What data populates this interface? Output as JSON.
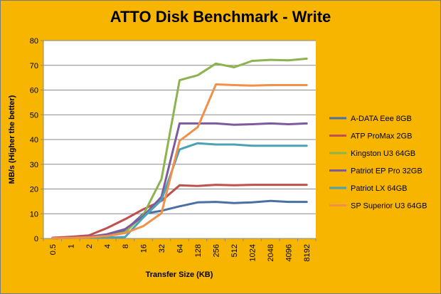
{
  "chart_data": {
    "type": "line",
    "title": "ATTO Disk Benchmark - Write",
    "xlabel": "Transfer Size (KB)",
    "ylabel": "MB/s (Higher the better)",
    "ylim": [
      0,
      80
    ],
    "yticks": [
      0,
      10,
      20,
      30,
      40,
      50,
      60,
      70,
      80
    ],
    "categories": [
      "0.5",
      "1",
      "2",
      "4",
      "8",
      "16",
      "32",
      "64",
      "128",
      "256",
      "512",
      "1024",
      "2048",
      "4096",
      "8192"
    ],
    "grid": "horizontal",
    "legend_position": "right",
    "series": [
      {
        "name": "A-DATA Eee 8GB",
        "color": "#4a6fa5",
        "values": [
          0.1,
          0.3,
          0.6,
          1.3,
          3.2,
          10.0,
          11.2,
          13.0,
          14.6,
          14.8,
          14.3,
          14.6,
          15.2,
          14.8,
          14.8
        ]
      },
      {
        "name": "ATP ProMax 2GB",
        "color": "#c0504d",
        "values": [
          0.3,
          0.7,
          1.2,
          4.2,
          7.8,
          11.8,
          15.2,
          21.5,
          21.2,
          21.7,
          21.5,
          21.7,
          21.7,
          21.7,
          21.7
        ]
      },
      {
        "name": "Kingston U3 64GB",
        "color": "#8cb34d",
        "values": [
          0.1,
          0.2,
          0.5,
          1.0,
          2.5,
          9.5,
          24.0,
          64.0,
          66.0,
          70.7,
          69.2,
          71.8,
          72.2,
          72.0,
          72.7
        ]
      },
      {
        "name": "Patriot EP Pro 32GB",
        "color": "#7d5a9e",
        "values": [
          0.1,
          0.2,
          0.7,
          1.7,
          3.8,
          9.0,
          16.8,
          46.5,
          46.5,
          46.5,
          46.0,
          46.2,
          46.5,
          46.2,
          46.5
        ]
      },
      {
        "name": "Patriot LX 64GB",
        "color": "#4aa3b5",
        "values": [
          0.1,
          0.2,
          0.4,
          0.4,
          0.6,
          8.5,
          15.5,
          36.0,
          38.5,
          38.0,
          38.0,
          37.5,
          37.5,
          37.5,
          37.5
        ]
      },
      {
        "name": "SP Superior U3 64GB",
        "color": "#f0904a",
        "values": [
          0.1,
          0.2,
          0.5,
          1.0,
          2.2,
          5.0,
          10.2,
          39.5,
          45.0,
          62.3,
          62.0,
          61.8,
          62.0,
          62.0,
          62.0
        ]
      }
    ]
  },
  "colors": {
    "background": "#f7b500",
    "plot_area": "#ffffff",
    "gridline": "#8a8a8a",
    "border": "#7a7a7a"
  }
}
